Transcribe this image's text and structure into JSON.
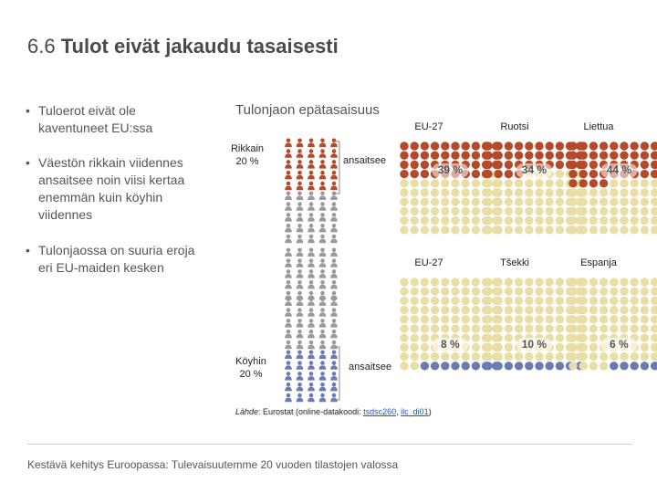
{
  "title": {
    "number": "6.6",
    "text": "Tulot eivät jakaudu tasaisesti"
  },
  "bullets": [
    {
      "marker": "•",
      "text": "Tuloerot eivät ole kaventuneet EU:ssa"
    },
    {
      "marker": "•",
      "text": "Väestön rikkain viidennes ansaitsee noin viisi kertaa enemmän kuin köyhin viidennes"
    },
    {
      "marker": "•",
      "text": "Tulonjaossa on suuria eroja eri EU-maiden kesken"
    }
  ],
  "infographic": {
    "subtitle": "Tulonjaon epätasaisuus",
    "rich_label": "Rikkain\n20 %",
    "rich_earns": "ansaitsee",
    "poor_label": "Köyhin\n20 %",
    "poor_earns": "ansaitsee",
    "source": {
      "prefix": "Lähde",
      "middle": ": Eurostat (online-datakoodi: ",
      "link1": "tsdsc260",
      "sep": ", ",
      "link2": "ilc_di01",
      "suffix": ")"
    }
  },
  "chart_data": {
    "type": "dot-matrix",
    "colors": {
      "rich": "#b34a2c",
      "poor": "#6a7ab5",
      "rest": "#e8dea6",
      "people": "#9a9a9a"
    },
    "people_grid": {
      "columns": 5,
      "rows_per_group": 5,
      "groups": 5
    },
    "top": {
      "series_label": "ansaitsee",
      "panels": [
        {
          "country": "EU-27",
          "value_label": "39 %",
          "value": 39
        },
        {
          "country": "Ruotsi",
          "value_label": "34 %",
          "value": 34
        },
        {
          "country": "Liettua",
          "value_label": "44 %",
          "value": 44
        }
      ]
    },
    "bottom": {
      "series_label": "ansaitsee",
      "panels": [
        {
          "country": "EU-27",
          "value_label": "8 %",
          "value": 8
        },
        {
          "country": "Tšekki",
          "value_label": "10 %",
          "value": 10
        },
        {
          "country": "Espanja",
          "value_label": "6 %",
          "value": 6
        }
      ]
    }
  },
  "footer": "Kestävä kehitys Euroopassa: Tulevaisuutemme 20 vuoden tilastojen valossa"
}
